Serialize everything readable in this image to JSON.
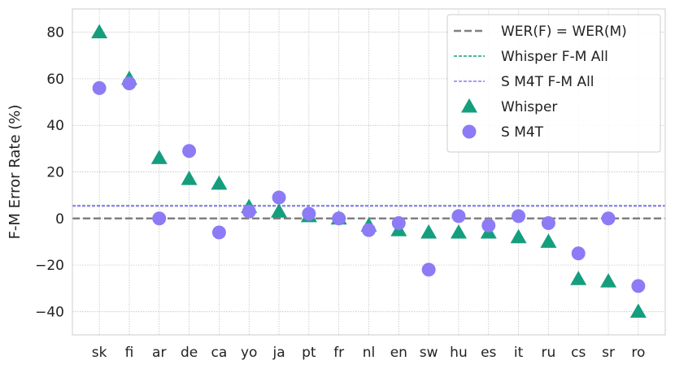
{
  "chart_data": {
    "type": "scatter",
    "ylabel": "F-M Error Rate (%)",
    "xlabel": "",
    "categories": [
      "sk",
      "fi",
      "ar",
      "de",
      "ca",
      "yo",
      "ja",
      "pt",
      "fr",
      "nl",
      "en",
      "sw",
      "hu",
      "es",
      "it",
      "ru",
      "cs",
      "sr",
      "ro"
    ],
    "ylim": [
      -50,
      90
    ],
    "yticks": [
      80,
      60,
      40,
      20,
      0,
      -20,
      -40
    ],
    "ytick_labels": [
      "80",
      "60",
      "40",
      "20",
      "0",
      "−20",
      "−40"
    ],
    "grid": true,
    "legend_position": "top-right",
    "series": [
      {
        "name": "Whisper",
        "marker": "triangle",
        "color": "#159e7e",
        "values": [
          80,
          60,
          26,
          17,
          15,
          5,
          3,
          1,
          0,
          -3,
          -5,
          -6,
          -6,
          -6,
          -8,
          -10,
          -26,
          -27,
          -40
        ]
      },
      {
        "name": "S M4T",
        "marker": "circle",
        "color": "#8c7bf5",
        "values": [
          56,
          58,
          0,
          29,
          -6,
          3,
          9,
          2,
          0,
          -5,
          -2,
          -22,
          1,
          -3,
          1,
          -2,
          -15,
          0,
          -29
        ]
      }
    ],
    "reference_lines": [
      {
        "name": "WER(F) = WER(M)",
        "y": 0,
        "color": "#808080",
        "style": "dashed"
      },
      {
        "name": "Whisper F-M All",
        "y": 5.5,
        "color": "#159e7e",
        "style": "dashed"
      },
      {
        "name": "S M4T F-M All",
        "y": 5.5,
        "color": "#8c7bf5",
        "style": "dashed"
      }
    ],
    "legend": [
      "WER(F) = WER(M)",
      "Whisper F-M All",
      "S M4T F-M All",
      "Whisper",
      "S M4T"
    ]
  }
}
